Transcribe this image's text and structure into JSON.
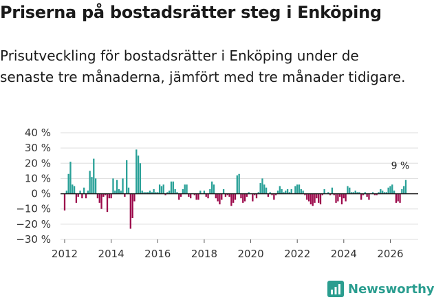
{
  "header": {
    "title": "Priserna på bostadsrätter steg i Enköping",
    "subtitle": "Prisutveckling för bostadsrätter i Enköping under de senaste tre månaderna, jämfört med tre månader tidigare."
  },
  "brand": {
    "name": "Newsworthy"
  },
  "colors": {
    "positive": "#2aa198",
    "negative": "#9c0a4b",
    "zero_line": "#222222",
    "grid": "#dddddd"
  },
  "chart_data": {
    "type": "bar",
    "title": "Priserna på bostadsrätter steg i Enköping",
    "ylabel": "",
    "xlabel": "",
    "ylim": [
      -30,
      40
    ],
    "yticks": [
      -30,
      -20,
      -10,
      0,
      10,
      20,
      30,
      40
    ],
    "ytick_labels": [
      "−30 %",
      "−20 %",
      "−10 %",
      "0 %",
      "10 %",
      "20 %",
      "30 %",
      "40 %"
    ],
    "xticks": [
      2012,
      2014,
      2016,
      2018,
      2020,
      2022,
      2024,
      2026
    ],
    "xtick_labels": [
      "2012",
      "2014",
      "2016",
      "2018",
      "2020",
      "2022",
      "2024",
      "2026"
    ],
    "start": [
      2012,
      1
    ],
    "grid": true,
    "last_value_label": "9 %",
    "values": [
      -11,
      2,
      13,
      21,
      6,
      5,
      -6,
      -2,
      2,
      -3,
      4,
      -3,
      2,
      15,
      11,
      23,
      10,
      -3,
      -6,
      -10,
      -2,
      -1,
      -12,
      -3,
      -3,
      10,
      2,
      9,
      3,
      2,
      10,
      -2,
      22,
      4,
      -23,
      -16,
      -5,
      29,
      25,
      20,
      2,
      1,
      1,
      1,
      2,
      1,
      3,
      1,
      1,
      6,
      5,
      6,
      -1,
      1,
      2,
      8,
      8,
      3,
      1,
      -4,
      -2,
      3,
      6,
      6,
      -2,
      -3,
      0,
      -1,
      -4,
      -4,
      2,
      0,
      2,
      -2,
      -3,
      3,
      8,
      6,
      -3,
      -5,
      -7,
      -4,
      3,
      -2,
      -1,
      -2,
      -8,
      -6,
      -4,
      12,
      13,
      -3,
      -6,
      -5,
      -2,
      1,
      0,
      -5,
      -1,
      -3,
      1,
      7,
      10,
      6,
      4,
      -2,
      1,
      -1,
      -4,
      -1,
      2,
      5,
      3,
      1,
      2,
      3,
      1,
      3,
      0,
      5,
      6,
      6,
      3,
      2,
      -1,
      -4,
      -5,
      -7,
      -8,
      -6,
      -3,
      -6,
      -7,
      -1,
      3,
      0,
      1,
      -1,
      4,
      -1,
      -6,
      -5,
      -2,
      -7,
      -3,
      -5,
      5,
      4,
      1,
      1,
      2,
      1,
      1,
      -4,
      -1,
      1,
      -2,
      -4,
      0,
      1,
      -1,
      -1,
      1,
      3,
      2,
      1,
      1,
      4,
      5,
      6,
      2,
      -6,
      -5,
      -6,
      3,
      5,
      9
    ]
  }
}
